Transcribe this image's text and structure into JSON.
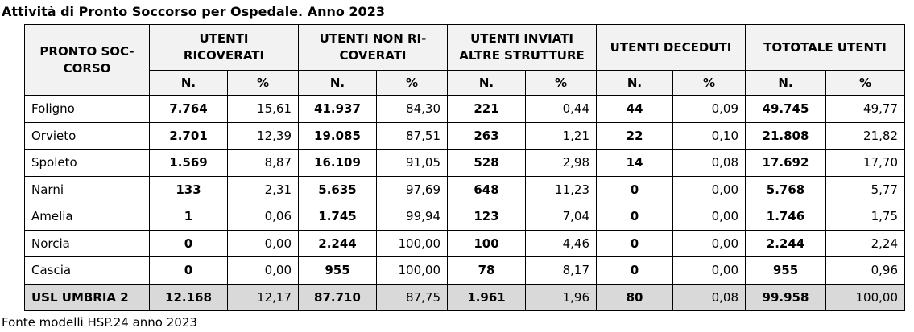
{
  "title": "Attività di Pronto Soccorso per Ospedale. Anno 2023",
  "table": {
    "corner_header": "PRONTO SOC-CORSO",
    "group_headers": [
      "UTENTI RICOVERATI",
      "UTENTI NON RI-COVERATI",
      "UTENTI INVIATI ALTRE STRUTTURE",
      "UTENTI DECEDUTI",
      "TOTOTALE UTENTI"
    ],
    "sub_headers": [
      "N.",
      "%",
      "N.",
      "%",
      "N.",
      "%",
      "N.",
      "%",
      "N.",
      "%"
    ],
    "rows": [
      [
        "Foligno",
        "7.764",
        "15,61",
        "41.937",
        "84,30",
        "221",
        "0,44",
        "44",
        "0,09",
        "49.745",
        "49,77"
      ],
      [
        "Orvieto",
        "2.701",
        "12,39",
        "19.085",
        "87,51",
        "263",
        "1,21",
        "22",
        "0,10",
        "21.808",
        "21,82"
      ],
      [
        "Spoleto",
        "1.569",
        "8,87",
        "16.109",
        "91,05",
        "528",
        "2,98",
        "14",
        "0,08",
        "17.692",
        "17,70"
      ],
      [
        "Narni",
        "133",
        "2,31",
        "5.635",
        "97,69",
        "648",
        "11,23",
        "0",
        "0,00",
        "5.768",
        "5,77"
      ],
      [
        "Amelia",
        "1",
        "0,06",
        "1.745",
        "99,94",
        "123",
        "7,04",
        "0",
        "0,00",
        "1.746",
        "1,75"
      ],
      [
        "Norcia",
        "0",
        "0,00",
        "2.244",
        "100,00",
        "100",
        "4,46",
        "0",
        "0,00",
        "2.244",
        "2,24"
      ],
      [
        "Cascia",
        "0",
        "0,00",
        "955",
        "100,00",
        "78",
        "8,17",
        "0",
        "0,00",
        "955",
        "0,96"
      ]
    ],
    "total_row": [
      "USL UMBRIA 2",
      "12.168",
      "12,17",
      "87.710",
      "87,75",
      "1.961",
      "1,96",
      "80",
      "0,08",
      "99.958",
      "100,00"
    ]
  },
  "footer": "Fonte modelli HSP.24 anno 2023"
}
